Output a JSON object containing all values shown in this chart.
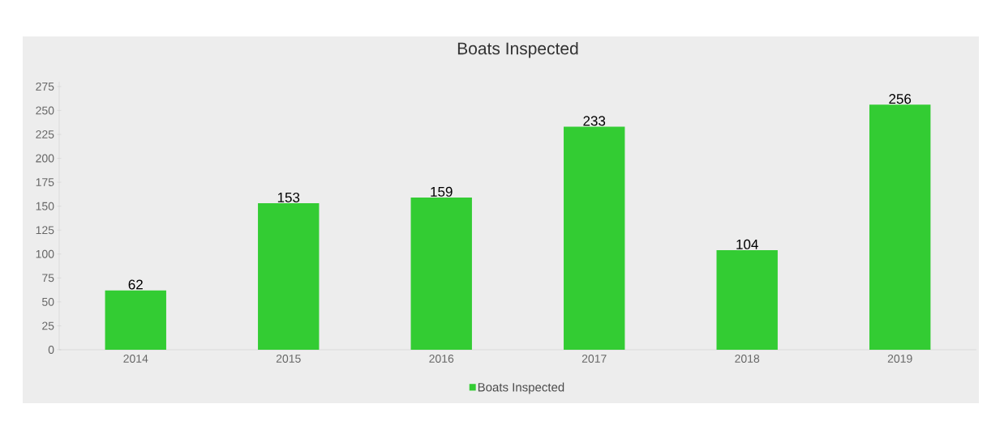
{
  "chart_data": {
    "type": "bar",
    "title": "Boats Inspected",
    "categories": [
      "2014",
      "2015",
      "2016",
      "2017",
      "2018",
      "2019"
    ],
    "series": [
      {
        "name": "Boats Inspected",
        "color": "#33cc33",
        "values": [
          62,
          153,
          159,
          233,
          104,
          256
        ]
      }
    ],
    "ylim": [
      0,
      280
    ],
    "yticks": [
      0,
      25,
      50,
      75,
      100,
      125,
      150,
      175,
      200,
      225,
      250,
      275
    ],
    "data_labels": true,
    "legend": "bottom"
  }
}
